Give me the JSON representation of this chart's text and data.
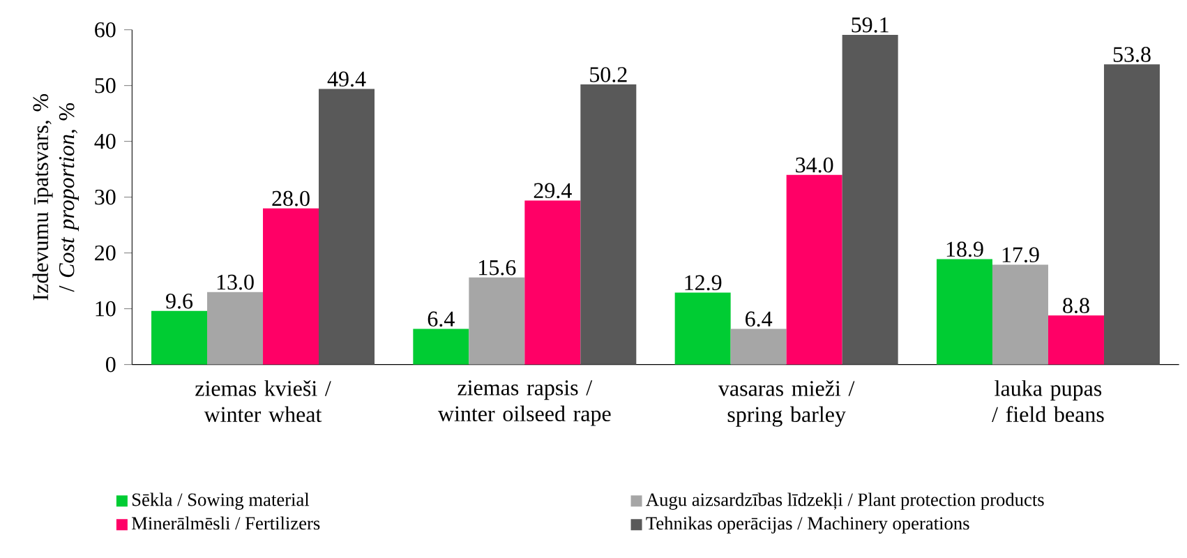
{
  "chart_data": {
    "type": "bar",
    "ylabel": "Izdevumu īpatsvars, % / *Cost proportion*, %",
    "categories": [
      "ziemas kvieši / winter wheat",
      "ziemas rapsis / winter oilseed rape",
      "vasaras mieži / spring barley",
      "lauka pupas / field beans"
    ],
    "series": [
      {
        "name": "Sēkla / Sowing material",
        "color": "#00cc33",
        "values": [
          9.6,
          6.4,
          12.9,
          18.9
        ],
        "value_labels": [
          "9.6",
          "6.4",
          "12.9",
          "18.9"
        ]
      },
      {
        "name": "Augu aizsardzības līdzekļi / Plant protection products",
        "color": "#a6a6a6",
        "values": [
          13.0,
          15.6,
          6.4,
          17.9
        ],
        "value_labels": [
          "13.0",
          "15.6",
          "6.4",
          "17.9"
        ]
      },
      {
        "name": "Minerālmēsli / Fertilizers",
        "color": "#ff0066",
        "values": [
          28.0,
          29.4,
          34.0,
          8.8
        ],
        "value_labels": [
          "28.0",
          "29.4",
          "34.0",
          "8.8"
        ]
      },
      {
        "name": "Tehnikas operācijas / Machinery operations",
        "color": "#595959",
        "values": [
          49.4,
          50.2,
          59.1,
          53.8
        ],
        "value_labels": [
          "49.4",
          "50.2",
          "59.1",
          "53.8"
        ]
      }
    ],
    "ylim": [
      0,
      60
    ],
    "yticks": [
      0,
      10,
      20,
      30,
      40,
      50,
      60
    ],
    "legend": "bottom",
    "grid": false
  }
}
